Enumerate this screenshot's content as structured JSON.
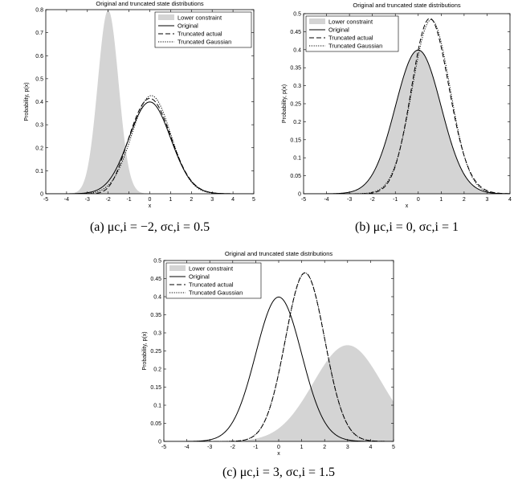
{
  "chart_data": [
    {
      "type": "line",
      "title": "Original and truncated state distributions",
      "xlabel": "x",
      "ylabel": "Probability, p(x)",
      "xlim": [
        -5,
        5
      ],
      "ylim": [
        0,
        0.8
      ],
      "xticks": [
        -5,
        -4,
        -3,
        -2,
        -1,
        0,
        1,
        2,
        3,
        4,
        5
      ],
      "yticks": [
        0,
        0.1,
        0.2,
        0.3,
        0.4,
        0.5,
        0.6,
        0.7,
        0.8
      ],
      "legend_position": "top-right",
      "caption": "(a) μc,i = −2, σc,i = 0.5",
      "constraint": {
        "mu": -2,
        "sigma": 0.5
      },
      "series": [
        {
          "name": "Lower constraint",
          "style": "filled-area"
        },
        {
          "name": "Original",
          "style": "solid",
          "mu": 0,
          "sigma": 1
        },
        {
          "name": "Truncated actual",
          "style": "dashed"
        },
        {
          "name": "Truncated Gaussian",
          "style": "dotted"
        }
      ]
    },
    {
      "type": "line",
      "title": "Original and truncated state distributions",
      "xlabel": "x",
      "ylabel": "Probability, p(x)",
      "xlim": [
        -5,
        4
      ],
      "ylim": [
        0,
        0.5
      ],
      "xticks": [
        -5,
        -4,
        -3,
        -2,
        -1,
        0,
        1,
        2,
        3,
        4
      ],
      "yticks": [
        0,
        0.05,
        0.1,
        0.15,
        0.2,
        0.25,
        0.3,
        0.35,
        0.4,
        0.45,
        0.5
      ],
      "legend_position": "top-left",
      "caption": "(b) μc,i = 0, σc,i = 1",
      "constraint": {
        "mu": 0,
        "sigma": 1
      },
      "series": [
        {
          "name": "Lower constraint",
          "style": "filled-area"
        },
        {
          "name": "Original",
          "style": "solid",
          "mu": 0,
          "sigma": 1
        },
        {
          "name": "Truncated actual",
          "style": "dashed"
        },
        {
          "name": "Truncated Gaussian",
          "style": "dotted"
        }
      ]
    },
    {
      "type": "line",
      "title": "Original and truncated state distributions",
      "xlabel": "x",
      "ylabel": "Probability, p(x)",
      "xlim": [
        -5,
        5
      ],
      "ylim": [
        0,
        0.5
      ],
      "xticks": [
        -5,
        -4,
        -3,
        -2,
        -1,
        0,
        1,
        2,
        3,
        4,
        5
      ],
      "yticks": [
        0,
        0.05,
        0.1,
        0.15,
        0.2,
        0.25,
        0.3,
        0.35,
        0.4,
        0.45,
        0.5
      ],
      "legend_position": "top-left",
      "caption": "(c) μc,i = 3, σc,i = 1.5",
      "constraint": {
        "mu": 3,
        "sigma": 1.5
      },
      "series": [
        {
          "name": "Lower constraint",
          "style": "filled-area"
        },
        {
          "name": "Original",
          "style": "solid",
          "mu": 0,
          "sigma": 1
        },
        {
          "name": "Truncated actual",
          "style": "dashed"
        },
        {
          "name": "Truncated Gaussian",
          "style": "dotted"
        }
      ]
    }
  ]
}
